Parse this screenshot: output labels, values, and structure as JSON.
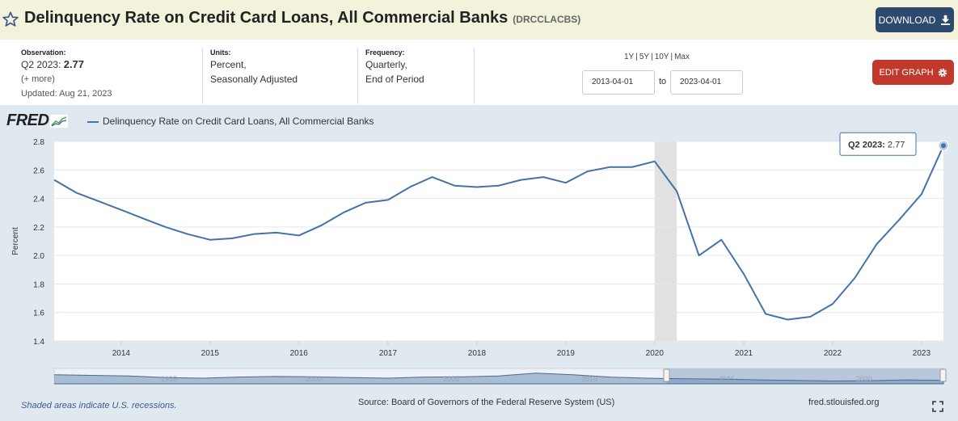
{
  "header": {
    "title": "Delinquency Rate on Credit Card Loans, All Commercial Banks",
    "series_code": "(DRCCLACBS)",
    "download_label": "DOWNLOAD"
  },
  "meta": {
    "observation_label": "Observation:",
    "observation_period": "Q2 2023:",
    "observation_value": "2.77",
    "more": "(+ more)",
    "updated": "Updated: Aug 21, 2023",
    "units_label": "Units:",
    "units_line1": "Percent,",
    "units_line2": "Seasonally Adjusted",
    "frequency_label": "Frequency:",
    "frequency_line1": "Quarterly,",
    "frequency_line2": "End of Period"
  },
  "range_buttons": [
    "1Y",
    "5Y",
    "10Y",
    "Max"
  ],
  "date_range": {
    "start": "2013-04-01",
    "to": "to",
    "end": "2023-04-01"
  },
  "edit_graph_label": "EDIT GRAPH",
  "logo": "FRED",
  "legend": "Delinquency Rate on Credit Card Loans, All Commercial Banks",
  "tooltip": {
    "label": "Q2 2023:",
    "value": "2.77"
  },
  "footer": {
    "recession_note": "Shaded areas indicate U.S. recessions.",
    "source": "Source: Board of Governors of the Federal Reserve System (US)",
    "site": "fred.stlouisfed.org"
  },
  "navigator_labels": [
    "1995",
    "2000",
    "2005",
    "2010",
    "2015",
    "2020"
  ],
  "colors": {
    "series": "#4572a7",
    "download": "#2d4a6e",
    "edit": "#c0392b",
    "header_bg": "#f3f3dc",
    "graph_bg": "#e1e9f0"
  },
  "chart_data": {
    "type": "line",
    "title": "",
    "xlabel": "",
    "ylabel": "Percent",
    "ylim": [
      1.4,
      2.8
    ],
    "yticks": [
      "1.4",
      "1.6",
      "1.8",
      "2.0",
      "2.2",
      "2.4",
      "2.6",
      "2.8"
    ],
    "xticks": [
      "2014",
      "2015",
      "2016",
      "2017",
      "2018",
      "2019",
      "2020",
      "2021",
      "2022",
      "2023"
    ],
    "recession": {
      "start": "2020-01-01",
      "end": "2020-04-01"
    },
    "grid": true,
    "series": [
      {
        "name": "Delinquency Rate on Credit Card Loans, All Commercial Banks",
        "x": [
          "2013-04-01",
          "2013-07-01",
          "2013-10-01",
          "2014-01-01",
          "2014-04-01",
          "2014-07-01",
          "2014-10-01",
          "2015-01-01",
          "2015-04-01",
          "2015-07-01",
          "2015-10-01",
          "2016-01-01",
          "2016-04-01",
          "2016-07-01",
          "2016-10-01",
          "2017-01-01",
          "2017-04-01",
          "2017-07-01",
          "2017-10-01",
          "2018-01-01",
          "2018-04-01",
          "2018-07-01",
          "2018-10-01",
          "2019-01-01",
          "2019-04-01",
          "2019-07-01",
          "2019-10-01",
          "2020-01-01",
          "2020-04-01",
          "2020-07-01",
          "2020-10-01",
          "2021-01-01",
          "2021-04-01",
          "2021-07-01",
          "2021-10-01",
          "2022-01-01",
          "2022-04-01",
          "2022-07-01",
          "2022-10-01",
          "2023-01-01",
          "2023-04-01"
        ],
        "values": [
          2.53,
          2.44,
          2.38,
          2.32,
          2.26,
          2.2,
          2.15,
          2.11,
          2.12,
          2.15,
          2.16,
          2.14,
          2.21,
          2.3,
          2.37,
          2.39,
          2.48,
          2.55,
          2.49,
          2.48,
          2.49,
          2.53,
          2.55,
          2.51,
          2.59,
          2.62,
          2.62,
          2.66,
          2.45,
          2.0,
          2.11,
          1.87,
          1.59,
          1.55,
          1.57,
          1.66,
          1.84,
          2.08,
          2.25,
          2.43,
          2.77
        ]
      }
    ]
  }
}
